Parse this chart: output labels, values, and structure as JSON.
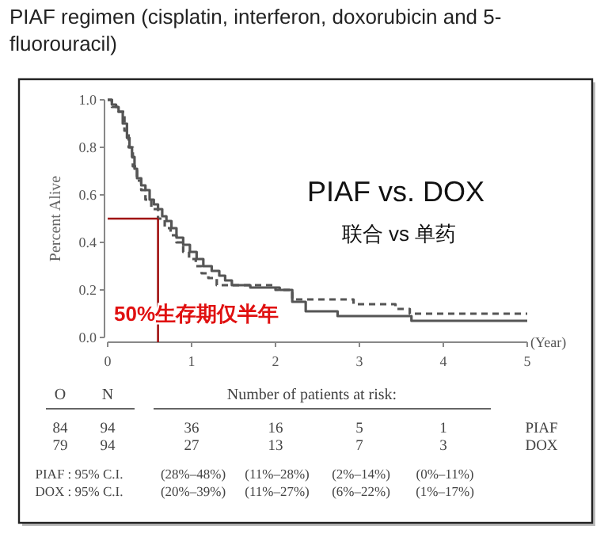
{
  "chart_data": {
    "type": "step",
    "title": "PIAF regimen (cisplatin, interferon, doxorubicin and 5-fluorouracil)",
    "xlabel": "(Year)",
    "ylabel": "Percent Alive",
    "xlim": [
      0,
      5
    ],
    "xticks": [
      0,
      1,
      2,
      3,
      4,
      5
    ],
    "ylim": [
      0,
      1
    ],
    "yticks": [
      {
        "value": 0,
        "label": "0.0"
      },
      {
        "value": 0.2,
        "label": "0.2"
      },
      {
        "value": 0.4,
        "label": "0.4"
      },
      {
        "value": 0.6,
        "label": "0.6"
      },
      {
        "value": 0.8,
        "label": "0.8"
      },
      {
        "value": 1,
        "label": "1.0"
      }
    ],
    "grid": false,
    "ref_lines": [
      {
        "axis": "y",
        "value": 0.5,
        "color": "#a01010"
      },
      {
        "axis": "x",
        "value": 0.6,
        "color": "#a01010"
      }
    ],
    "series": [
      {
        "color": "#555555",
        "line_style": "solid",
        "x": [
          0,
          0.05,
          0.1,
          0.13,
          0.18,
          0.23,
          0.26,
          0.29,
          0.32,
          0.35,
          0.4,
          0.45,
          0.5,
          0.55,
          0.6,
          0.65,
          0.7,
          0.76,
          0.82,
          0.9,
          0.98,
          1.06,
          1.14,
          1.24,
          1.33,
          1.4,
          1.48,
          1.7,
          2.05,
          2.2,
          2.36,
          2.74,
          3.62,
          5.0
        ],
        "values": [
          1.0,
          0.98,
          0.97,
          0.95,
          0.9,
          0.84,
          0.8,
          0.76,
          0.71,
          0.67,
          0.64,
          0.62,
          0.58,
          0.56,
          0.54,
          0.51,
          0.49,
          0.46,
          0.42,
          0.39,
          0.36,
          0.33,
          0.3,
          0.28,
          0.26,
          0.24,
          0.22,
          0.21,
          0.2,
          0.15,
          0.11,
          0.09,
          0.07,
          0.07
        ]
      },
      {
        "color": "#555555",
        "line_style": "dashed",
        "x": [
          0,
          0.05,
          0.13,
          0.2,
          0.25,
          0.3,
          0.35,
          0.4,
          0.45,
          0.52,
          0.6,
          0.68,
          0.75,
          0.82,
          0.9,
          0.97,
          1.05,
          1.12,
          1.2,
          1.3,
          1.5,
          2.0,
          2.2,
          2.93,
          3.43,
          3.6,
          5.0
        ],
        "values": [
          1.0,
          0.97,
          0.95,
          0.87,
          0.8,
          0.72,
          0.66,
          0.62,
          0.58,
          0.54,
          0.5,
          0.46,
          0.43,
          0.4,
          0.36,
          0.33,
          0.3,
          0.27,
          0.25,
          0.22,
          0.22,
          0.2,
          0.16,
          0.14,
          0.12,
          0.1,
          0.1
        ]
      }
    ],
    "annotations": [
      "PIAF vs. DOX",
      "联合 vs 单药",
      "50%生存期仅半年",
      "O",
      "N",
      "Number of patients at risk:",
      "84",
      "94",
      "36",
      "16",
      "5",
      "1",
      "PIAF",
      "79",
      "94",
      "27",
      "13",
      "7",
      "3",
      "DOX",
      "PIAF : 95% C.I.",
      "(28%–48%)",
      "(11%–28%)",
      "(2%–14%)",
      "(0%–11%)",
      "DOX : 95% C.I.",
      "(20%–39%)",
      "(11%–27%)",
      "(6%–22%)",
      "(1%–17%)"
    ]
  }
}
